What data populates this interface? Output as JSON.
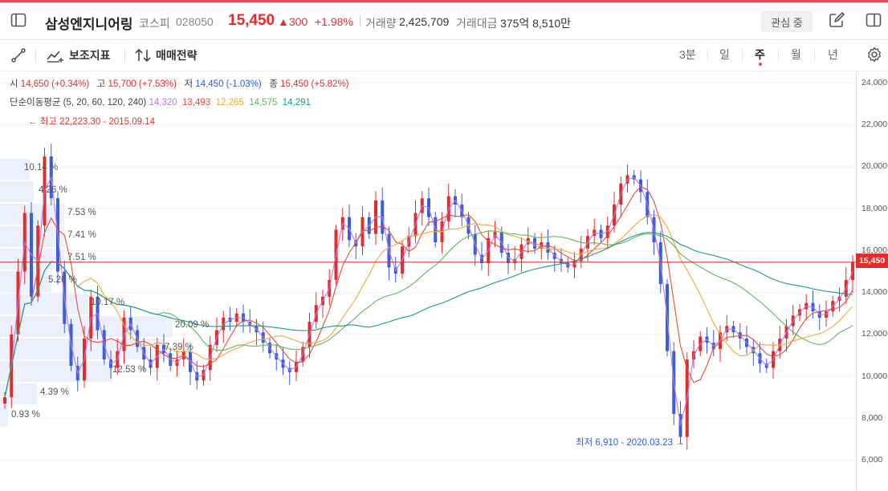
{
  "header": {
    "name": "삼성엔지니어링",
    "market": "코스피",
    "code": "028050",
    "price": "15,450",
    "change": "▲300",
    "change_pct": "+1.98%",
    "volume_label": "거래량",
    "volume": "2,425,709",
    "amount_label": "거래대금",
    "amount": "375억 8,510만",
    "watch_label": "관심 중"
  },
  "toolbar": {
    "indicator_label": "보조지표",
    "strategy_label": "매매전략",
    "periods": [
      "3분",
      "일",
      "주",
      "월",
      "년"
    ],
    "active_period": "주"
  },
  "ohlc": {
    "open_label": "시",
    "open": "14,650 (+0.34%)",
    "high_label": "고",
    "high": "15,700 (+7.53%)",
    "low_label": "저",
    "low": "14,450 (-1.03%)",
    "close_label": "종",
    "close": "15,450 (+5.82%)"
  },
  "ma": {
    "label": "단순이동평균 (5, 20, 60, 120, 240)",
    "values": [
      "14,320",
      "13,493",
      "12,265",
      "14,575",
      "14,291"
    ],
    "colors": [
      "#b57be6",
      "#e84a3a",
      "#f0a830",
      "#5cb85c",
      "#1a9a8a"
    ]
  },
  "colors": {
    "up": "#e22d2d",
    "down": "#3a5fd8",
    "accent": "#f04452"
  },
  "chart_data": {
    "type": "candlestick",
    "y_ticks": [
      "24,000",
      "22,000",
      "20,000",
      "18,000",
      "16,000",
      "14,000",
      "12,000",
      "10,000",
      "8,000",
      "6,000"
    ],
    "ylim": [
      6000,
      24000
    ],
    "last_price_label": "15,450",
    "last_price": 15450,
    "high_annotation": "최고 22,223.30 - 2015.09.14",
    "low_annotation": "최저 6,910 - 2020.03.23",
    "volume_profile": [
      "10.14 %",
      "4.26 %",
      "7.53 %",
      "7.41 %",
      "7.51 %",
      "5.26 %",
      "10.17 %",
      "20.09 %",
      "7.39 %",
      "12.53 %",
      "4.39 %",
      "0.93 %"
    ],
    "close_path": [
      9000,
      12000,
      15000,
      17800,
      13800,
      17200,
      20500,
      18500,
      15000,
      12500,
      10500,
      9800,
      11800,
      13800,
      12200,
      10800,
      10400,
      11200,
      12800,
      12200,
      11400,
      10800,
      10400,
      11500,
      11100,
      10500,
      10800,
      11200,
      10200,
      9800,
      10300,
      11500,
      12200,
      12800,
      12600,
      13000,
      12600,
      12400,
      12100,
      11600,
      11100,
      10800,
      10400,
      10200,
      10700,
      11400,
      12600,
      13400,
      13800,
      14600,
      17000,
      17600,
      16500,
      16200,
      17600,
      16800,
      18400,
      16800,
      15200,
      14900,
      16200,
      16700,
      17800,
      18500,
      17600,
      16400,
      17400,
      18600,
      18200,
      17600,
      16800,
      15800,
      15400,
      16600,
      16900,
      15900,
      15400,
      15600,
      16300,
      16600,
      16100,
      16400,
      15900,
      15600,
      15400,
      15200,
      15500,
      16100,
      16700,
      17000,
      16600,
      17200,
      18200,
      19200,
      19600,
      19400,
      18800,
      17600,
      16400,
      14400,
      11200,
      8200,
      7100,
      10800,
      11200,
      11900,
      11600,
      11300,
      12100,
      12400,
      12100,
      11800,
      11400,
      11100,
      10600,
      10400,
      11200,
      11800,
      12400,
      12900,
      13200,
      13500,
      13100,
      12800,
      13100,
      13600,
      13800,
      14600,
      15450
    ]
  }
}
